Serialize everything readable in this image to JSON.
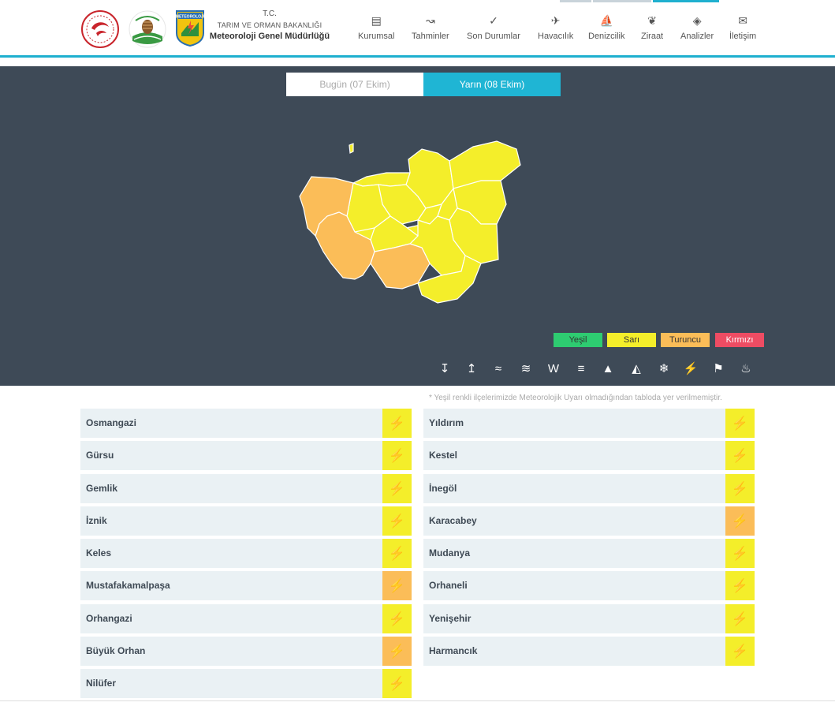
{
  "header": {
    "brand_l1": "T.C.",
    "brand_l2": "TARIM VE ORMAN BAKANLIĞI",
    "brand_l3": "Meteoroloji Genel Müdürlüğü",
    "logo_text": "METEOROLOJİ",
    "nav": [
      {
        "label": "Kurumsal",
        "icon": "document-icon"
      },
      {
        "label": "Tahminler",
        "icon": "chart-icon"
      },
      {
        "label": "Son Durumlar",
        "icon": "check-circle-icon"
      },
      {
        "label": "Havacılık",
        "icon": "plane-icon"
      },
      {
        "label": "Denizcilik",
        "icon": "sailboat-icon"
      },
      {
        "label": "Ziraat",
        "icon": "leaf-icon"
      },
      {
        "label": "Analizler",
        "icon": "analysis-icon"
      },
      {
        "label": "İletişim",
        "icon": "envelope-icon"
      }
    ]
  },
  "day_tabs": {
    "today": "Bugün (07 Ekim)",
    "tomorrow": "Yarın (08 Ekim)",
    "active": "tomorrow"
  },
  "legend": [
    {
      "label": "Yeşil",
      "color": "#2ecc71"
    },
    {
      "label": "Sarı",
      "color": "#f4ee2a"
    },
    {
      "label": "Turuncu",
      "color": "#fbbd58"
    },
    {
      "label": "Kırmızı",
      "color": "#ee4c63"
    }
  ],
  "hazard_icons": [
    "cold-temperature-icon",
    "hot-temperature-icon",
    "wind-icon",
    "flood-icon",
    "rain-icon",
    "fog-icon",
    "avalanche-icon",
    "dust-icon",
    "snow-icon",
    "thunderstorm-icon",
    "windsock-icon",
    "rain-drops-icon"
  ],
  "note": "* Yeşil renkli ilçelerimizde Meteorolojik Uyarı olmadığından tabloda yer verilmemiştir.",
  "districts_left": [
    {
      "name": "Osmangazi",
      "level": "sari"
    },
    {
      "name": "Gürsu",
      "level": "sari"
    },
    {
      "name": "Gemlik",
      "level": "sari"
    },
    {
      "name": "İznik",
      "level": "sari"
    },
    {
      "name": "Keles",
      "level": "sari"
    },
    {
      "name": "Mustafakamalpaşa",
      "level": "turuncu"
    },
    {
      "name": "Orhangazi",
      "level": "sari"
    },
    {
      "name": "Büyük Orhan",
      "level": "turuncu"
    },
    {
      "name": "Nilüfer",
      "level": "sari"
    }
  ],
  "districts_right": [
    {
      "name": "Yıldırım",
      "level": "sari"
    },
    {
      "name": "Kestel",
      "level": "sari"
    },
    {
      "name": "İnegöl",
      "level": "sari"
    },
    {
      "name": "Karacabey",
      "level": "turuncu"
    },
    {
      "name": "Mudanya",
      "level": "sari"
    },
    {
      "name": "Orhaneli",
      "level": "sari"
    },
    {
      "name": "Yenişehir",
      "level": "sari"
    },
    {
      "name": "Harmancık",
      "level": "sari"
    }
  ],
  "warning_icon": "lightning-icon",
  "colors": {
    "accent": "#1fb0cf",
    "hero_bg": "#3e4a57",
    "sari": "#f4ee2a",
    "turuncu": "#fbbd58"
  }
}
